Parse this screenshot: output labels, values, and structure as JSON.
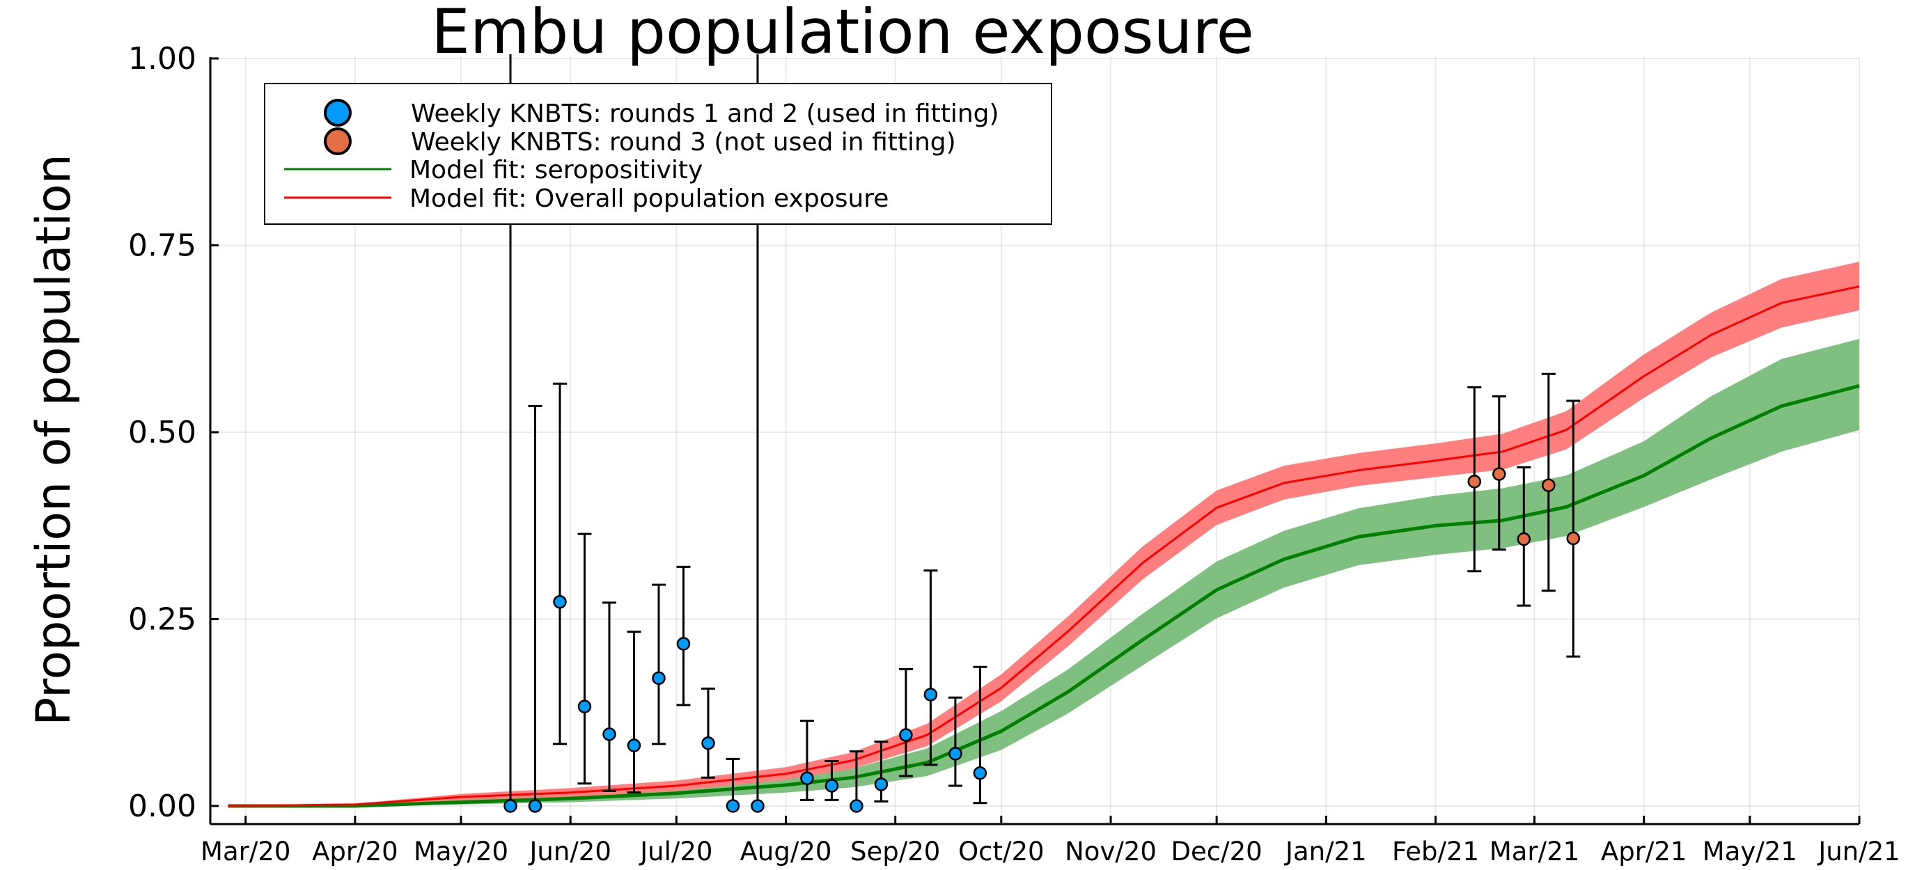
{
  "chart_data": {
    "type": "line",
    "title": "Embu population exposure",
    "xlabel": "",
    "ylabel": "Proportion of population",
    "ylim": [
      0,
      1
    ],
    "xlim": [
      "2020-02-20",
      "2021-06-01"
    ],
    "grid": true,
    "legend_placement": "top-left",
    "x_ticks": [
      "Mar/20",
      "Apr/20",
      "May/20",
      "Jun/20",
      "Jul/20",
      "Aug/20",
      "Sep/20",
      "Oct/20",
      "Nov/20",
      "Dec/20",
      "Jan/21",
      "Feb/21",
      "Mar/21",
      "Apr/21",
      "May/21",
      "Jun/21"
    ],
    "x_tick_dates": [
      "2020-03-01",
      "2020-04-01",
      "2020-05-01",
      "2020-06-01",
      "2020-07-01",
      "2020-08-01",
      "2020-09-01",
      "2020-10-01",
      "2020-11-01",
      "2020-12-01",
      "2021-01-01",
      "2021-02-01",
      "2021-03-01",
      "2021-04-01",
      "2021-05-01",
      "2021-06-01"
    ],
    "y_ticks": [
      0.0,
      0.25,
      0.5,
      0.75,
      1.0
    ],
    "y_tick_labels": [
      "0.00",
      "0.25",
      "0.50",
      "0.75",
      "1.00"
    ],
    "colors": {
      "rounds_1_2": "#009af9",
      "round_3": "#e26f46",
      "seropositivity": "#008000",
      "seropositivity_band": "#7fbf7f",
      "exposure": "#ff0000",
      "exposure_band": "#ff7f7f"
    },
    "series": [
      {
        "name": "Weekly KNBTS: rounds 1 and 2 (used in fitting)",
        "kind": "scatter_errorbar",
        "color_key": "rounds_1_2",
        "points": [
          {
            "x": "2020-05-15",
            "y": 0.0,
            "lo": 0.0,
            "hi": 1.0
          },
          {
            "x": "2020-05-22",
            "y": 0.0,
            "lo": 0.0,
            "hi": 0.535
          },
          {
            "x": "2020-05-29",
            "y": 0.273,
            "lo": 0.083,
            "hi": 0.565
          },
          {
            "x": "2020-06-05",
            "y": 0.133,
            "lo": 0.03,
            "hi": 0.364
          },
          {
            "x": "2020-06-12",
            "y": 0.096,
            "lo": 0.02,
            "hi": 0.272
          },
          {
            "x": "2020-06-19",
            "y": 0.081,
            "lo": 0.018,
            "hi": 0.233
          },
          {
            "x": "2020-06-26",
            "y": 0.171,
            "lo": 0.083,
            "hi": 0.296
          },
          {
            "x": "2020-07-03",
            "y": 0.217,
            "lo": 0.135,
            "hi": 0.32
          },
          {
            "x": "2020-07-10",
            "y": 0.084,
            "lo": 0.038,
            "hi": 0.157
          },
          {
            "x": "2020-07-17",
            "y": 0.0,
            "lo": 0.0,
            "hi": 0.063
          },
          {
            "x": "2020-07-24",
            "y": 0.0,
            "lo": 0.0,
            "hi": 1.0
          },
          {
            "x": "2020-08-07",
            "y": 0.037,
            "lo": 0.008,
            "hi": 0.114
          },
          {
            "x": "2020-08-14",
            "y": 0.027,
            "lo": 0.008,
            "hi": 0.06
          },
          {
            "x": "2020-08-21",
            "y": 0.0,
            "lo": 0.0,
            "hi": 0.073
          },
          {
            "x": "2020-08-28",
            "y": 0.029,
            "lo": 0.006,
            "hi": 0.086
          },
          {
            "x": "2020-09-04",
            "y": 0.095,
            "lo": 0.04,
            "hi": 0.183
          },
          {
            "x": "2020-09-11",
            "y": 0.149,
            "lo": 0.055,
            "hi": 0.315
          },
          {
            "x": "2020-09-18",
            "y": 0.07,
            "lo": 0.027,
            "hi": 0.145
          },
          {
            "x": "2020-09-25",
            "y": 0.044,
            "lo": 0.004,
            "hi": 0.186
          }
        ]
      },
      {
        "name": "Weekly KNBTS: round 3 (not used in fitting)",
        "kind": "scatter_errorbar",
        "color_key": "round_3",
        "points": [
          {
            "x": "2021-02-12",
            "y": 0.434,
            "lo": 0.314,
            "hi": 0.56
          },
          {
            "x": "2021-02-19",
            "y": 0.444,
            "lo": 0.343,
            "hi": 0.548
          },
          {
            "x": "2021-02-26",
            "y": 0.357,
            "lo": 0.268,
            "hi": 0.453
          },
          {
            "x": "2021-03-05",
            "y": 0.429,
            "lo": 0.288,
            "hi": 0.578
          },
          {
            "x": "2021-03-12",
            "y": 0.358,
            "lo": 0.2,
            "hi": 0.542
          }
        ]
      },
      {
        "name": "Model fit: seropositivity",
        "kind": "line_band",
        "color_key": "seropositivity",
        "band_color_key": "seropositivity_band",
        "x": [
          "2020-02-25",
          "2020-04-01",
          "2020-05-01",
          "2020-06-01",
          "2020-07-01",
          "2020-08-01",
          "2020-08-20",
          "2020-09-10",
          "2020-10-01",
          "2020-10-20",
          "2020-11-10",
          "2020-12-01",
          "2020-12-20",
          "2021-01-10",
          "2021-02-01",
          "2021-02-20",
          "2021-03-10",
          "2021-04-01",
          "2021-04-20",
          "2021-05-10",
          "2021-06-01"
        ],
        "mean": [
          0.0,
          0.0,
          0.005,
          0.01,
          0.017,
          0.028,
          0.038,
          0.058,
          0.1,
          0.153,
          0.222,
          0.289,
          0.33,
          0.36,
          0.375,
          0.382,
          0.4,
          0.442,
          0.492,
          0.535,
          0.562
        ],
        "lower": [
          0.0,
          0.0,
          0.002,
          0.005,
          0.01,
          0.018,
          0.025,
          0.04,
          0.075,
          0.124,
          0.188,
          0.251,
          0.292,
          0.322,
          0.336,
          0.345,
          0.361,
          0.4,
          0.437,
          0.474,
          0.503
        ],
        "upper": [
          0.0,
          0.002,
          0.008,
          0.014,
          0.024,
          0.038,
          0.05,
          0.077,
          0.127,
          0.183,
          0.257,
          0.327,
          0.368,
          0.398,
          0.415,
          0.425,
          0.442,
          0.488,
          0.548,
          0.598,
          0.625
        ]
      },
      {
        "name": "Model fit: Overall population exposure",
        "kind": "line_band",
        "color_key": "exposure",
        "band_color_key": "exposure_band",
        "x": [
          "2020-02-25",
          "2020-04-01",
          "2020-05-01",
          "2020-06-01",
          "2020-07-01",
          "2020-08-01",
          "2020-08-20",
          "2020-09-10",
          "2020-10-01",
          "2020-10-20",
          "2020-11-10",
          "2020-12-01",
          "2020-12-20",
          "2021-01-10",
          "2021-02-01",
          "2021-02-20",
          "2021-03-10",
          "2021-04-01",
          "2021-04-20",
          "2021-05-10",
          "2021-06-01"
        ],
        "mean": [
          0.0,
          0.002,
          0.012,
          0.018,
          0.027,
          0.043,
          0.061,
          0.095,
          0.158,
          0.234,
          0.325,
          0.399,
          0.432,
          0.449,
          0.462,
          0.474,
          0.503,
          0.575,
          0.63,
          0.673,
          0.695
        ],
        "lower": [
          0.0,
          0.001,
          0.008,
          0.012,
          0.02,
          0.035,
          0.05,
          0.08,
          0.14,
          0.214,
          0.303,
          0.376,
          0.41,
          0.428,
          0.44,
          0.45,
          0.477,
          0.546,
          0.6,
          0.64,
          0.663
        ],
        "upper": [
          0.0,
          0.003,
          0.016,
          0.024,
          0.034,
          0.052,
          0.072,
          0.11,
          0.176,
          0.254,
          0.347,
          0.422,
          0.455,
          0.472,
          0.485,
          0.498,
          0.528,
          0.604,
          0.66,
          0.705,
          0.728
        ]
      }
    ]
  }
}
